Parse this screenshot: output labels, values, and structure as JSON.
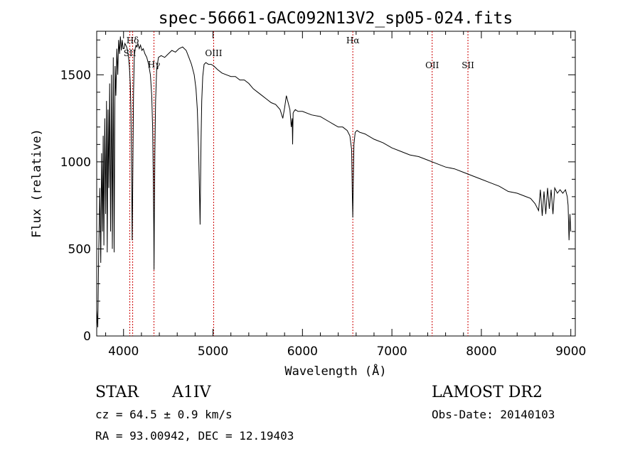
{
  "chart_data": {
    "type": "line",
    "title": "spec-56661-GAC092N13V2_sp05-024.fits",
    "xlabel": "Wavelength (Å)",
    "ylabel": "Flux (relative)",
    "xlim": [
      3700,
      9050
    ],
    "ylim": [
      0,
      1750
    ],
    "xticks": [
      4000,
      5000,
      6000,
      7000,
      8000,
      9000
    ],
    "yticks": [
      0,
      500,
      1000,
      1500
    ],
    "grid": false,
    "line_color": "#000000",
    "marker_color": "#cc0000",
    "series": [
      {
        "x": [
          3700,
          3712,
          3722,
          3735,
          3745,
          3755,
          3765,
          3772,
          3780,
          3790,
          3800,
          3810,
          3818,
          3826,
          3835,
          3845,
          3855,
          3865,
          3875,
          3885,
          3895,
          3905,
          3915,
          3925,
          3935,
          3945,
          3955,
          3965,
          3975,
          3985,
          3995,
          4005,
          4015,
          4025,
          4035,
          4045,
          4055,
          4065,
          4075,
          4082,
          4088,
          4093,
          4097,
          4101,
          4106,
          4112,
          4120,
          4130,
          4140,
          4150,
          4160,
          4175,
          4190,
          4205,
          4220,
          4240,
          4260,
          4280,
          4300,
          4315,
          4325,
          4333,
          4338,
          4341,
          4345,
          4350,
          4358,
          4370,
          4390,
          4420,
          4460,
          4500,
          4540,
          4580,
          4620,
          4660,
          4700,
          4730,
          4760,
          4790,
          4810,
          4825,
          4838,
          4848,
          4856,
          4861,
          4866,
          4874,
          4885,
          4900,
          4920,
          4950,
          4980,
          5010,
          5050,
          5100,
          5150,
          5200,
          5250,
          5300,
          5350,
          5400,
          5450,
          5500,
          5550,
          5600,
          5650,
          5700,
          5750,
          5780,
          5800,
          5820,
          5840,
          5860,
          5875,
          5885,
          5890,
          5896,
          5905,
          5920,
          5950,
          6000,
          6100,
          6200,
          6300,
          6350,
          6400,
          6450,
          6500,
          6530,
          6550,
          6558,
          6563,
          6568,
          6575,
          6590,
          6610,
          6640,
          6700,
          6800,
          6900,
          7000,
          7100,
          7200,
          7300,
          7400,
          7500,
          7600,
          7700,
          7800,
          7850,
          7900,
          8000,
          8100,
          8200,
          8300,
          8400,
          8500,
          8550,
          8600,
          8640,
          8660,
          8680,
          8700,
          8720,
          8740,
          8760,
          8780,
          8800,
          8820,
          8850,
          8880,
          8910,
          8940,
          8960,
          8970,
          8980,
          8990,
          9000
        ],
        "y": [
          150,
          50,
          480,
          850,
          420,
          1050,
          600,
          1150,
          520,
          1250,
          700,
          1350,
          480,
          1300,
          850,
          1450,
          600,
          1500,
          500,
          1600,
          480,
          1550,
          1380,
          1650,
          1500,
          1700,
          1620,
          1720,
          1640,
          1700,
          1650,
          1650,
          1680,
          1670,
          1660,
          1640,
          1600,
          1550,
          1450,
          1300,
          1050,
          800,
          550,
          760,
          1100,
          1400,
          1600,
          1650,
          1670,
          1660,
          1680,
          1650,
          1670,
          1640,
          1650,
          1620,
          1600,
          1560,
          1500,
          1380,
          1200,
          900,
          600,
          380,
          700,
          1050,
          1350,
          1530,
          1600,
          1610,
          1600,
          1620,
          1640,
          1630,
          1650,
          1660,
          1640,
          1600,
          1560,
          1500,
          1420,
          1300,
          1080,
          850,
          640,
          880,
          1120,
          1350,
          1490,
          1560,
          1570,
          1560,
          1560,
          1550,
          1530,
          1510,
          1500,
          1490,
          1490,
          1470,
          1470,
          1450,
          1420,
          1400,
          1380,
          1360,
          1340,
          1330,
          1300,
          1250,
          1310,
          1380,
          1340,
          1300,
          1200,
          1250,
          1100,
          1280,
          1290,
          1300,
          1290,
          1290,
          1270,
          1260,
          1230,
          1215,
          1200,
          1200,
          1180,
          1150,
          1070,
          800,
          680,
          880,
          1100,
          1170,
          1180,
          1170,
          1160,
          1130,
          1110,
          1080,
          1060,
          1040,
          1030,
          1010,
          990,
          970,
          960,
          940,
          930,
          920,
          900,
          880,
          860,
          830,
          820,
          800,
          790,
          760,
          720,
          840,
          690,
          830,
          700,
          850,
          730,
          840,
          700,
          850,
          820,
          840,
          820,
          840,
          800,
          750,
          550,
          700,
          600
        ]
      }
    ],
    "line_markers": [
      {
        "label": "Hδ",
        "x": 4102
      },
      {
        "label": "SII",
        "x": 4070
      },
      {
        "label": "Hγ",
        "x": 4340
      },
      {
        "label": "OIII",
        "x": 5007
      },
      {
        "label": "Hα",
        "x": 6563
      },
      {
        "label": "OII",
        "x": 7450
      },
      {
        "label": "SII",
        "x": 7850
      }
    ]
  },
  "info": {
    "object_class": "STAR",
    "subclass": "A1IV",
    "survey": "LAMOST DR2",
    "cz": "cz = 64.5 ± 0.9 km/s",
    "obs_date": "Obs-Date: 20140103",
    "radec": "RA =  93.00942, DEC =  12.19403"
  }
}
